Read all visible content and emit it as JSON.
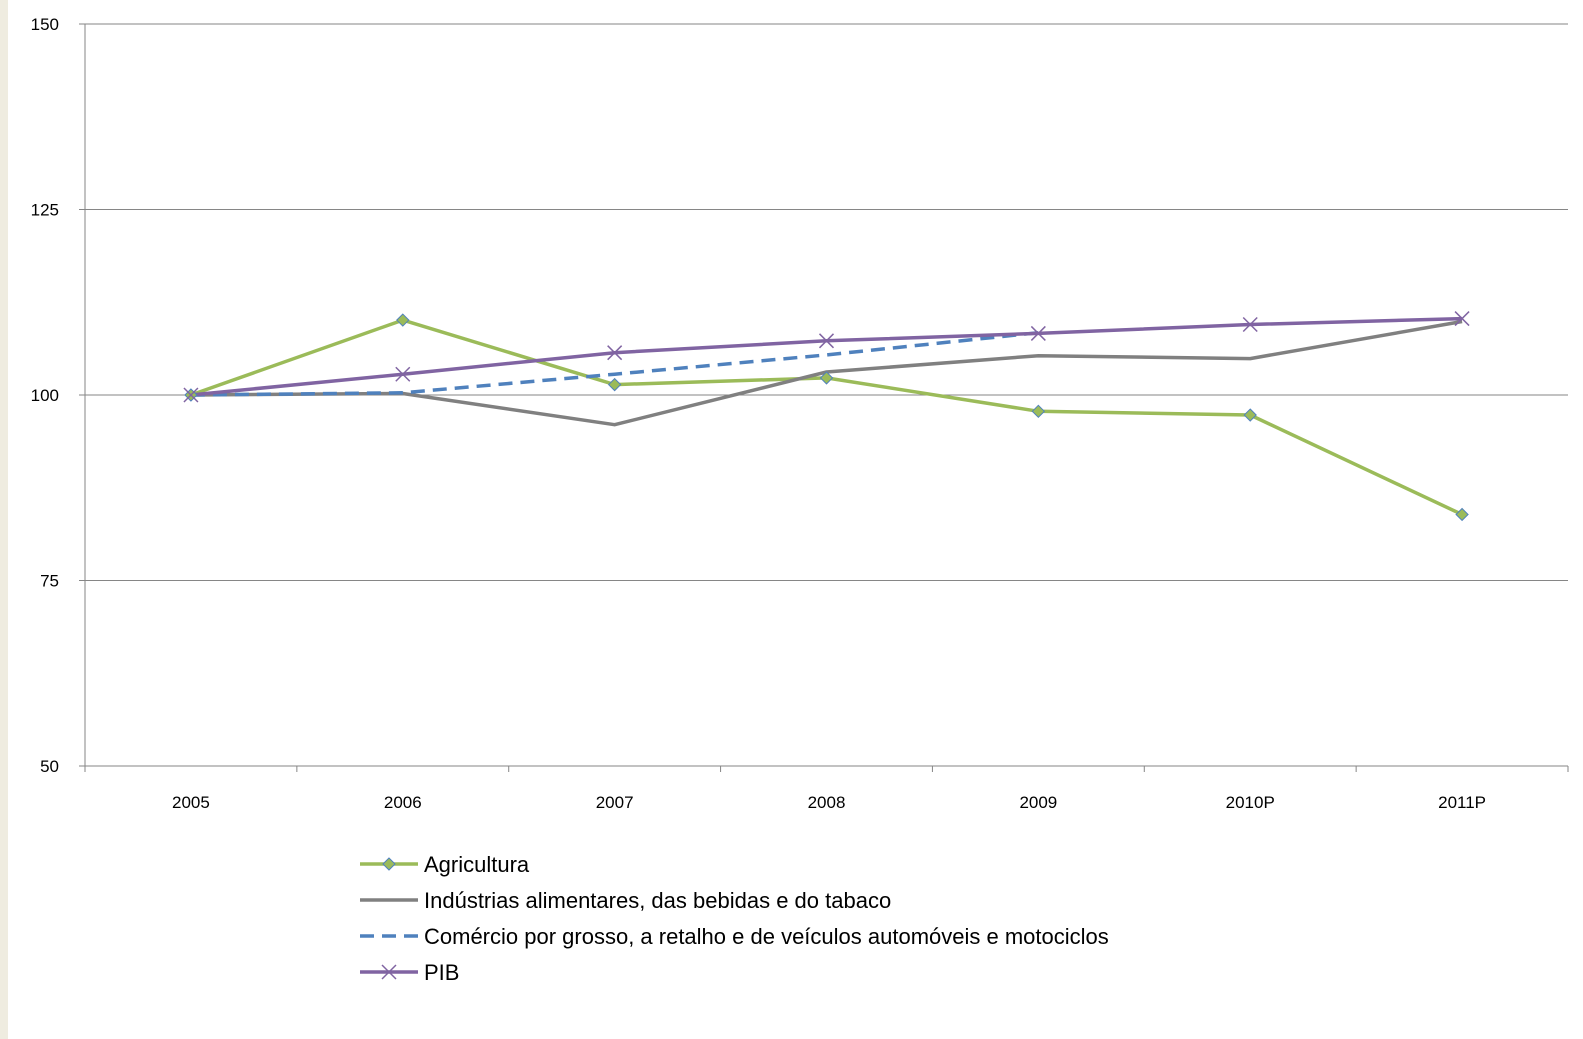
{
  "chart_data": {
    "type": "line",
    "title": "",
    "xlabel": "",
    "ylabel": "",
    "categories": [
      "2005",
      "2006",
      "2007",
      "2008",
      "2009",
      "2010P",
      "2011P"
    ],
    "ylim": [
      50,
      150
    ],
    "yticks": [
      50,
      75,
      100,
      125,
      150
    ],
    "grid": true,
    "legend_position": "bottom",
    "series": [
      {
        "name": "Agricultura",
        "values": [
          100,
          110.1,
          101.4,
          102.3,
          97.8,
          97.3,
          83.9
        ],
        "color": "#9bbb59",
        "marker": "diamond",
        "dash": "solid"
      },
      {
        "name": "Indústrias alimentares, das bebidas e do tabaco",
        "values": [
          100,
          100.2,
          96.0,
          103.1,
          105.3,
          104.9,
          109.9
        ],
        "color": "#808080",
        "marker": "none",
        "dash": "solid"
      },
      {
        "name": "Comércio por grosso, a retalho e de veículos automóveis e motociclos",
        "values": [
          100,
          100.3,
          102.8,
          105.4,
          108.4,
          null,
          null
        ],
        "color": "#4f81bd",
        "marker": "none",
        "dash": "dashed"
      },
      {
        "name": "PIB",
        "values": [
          100,
          102.8,
          105.7,
          107.3,
          108.3,
          109.5,
          110.3
        ],
        "color": "#8064a2",
        "marker": "x",
        "dash": "solid"
      }
    ]
  }
}
